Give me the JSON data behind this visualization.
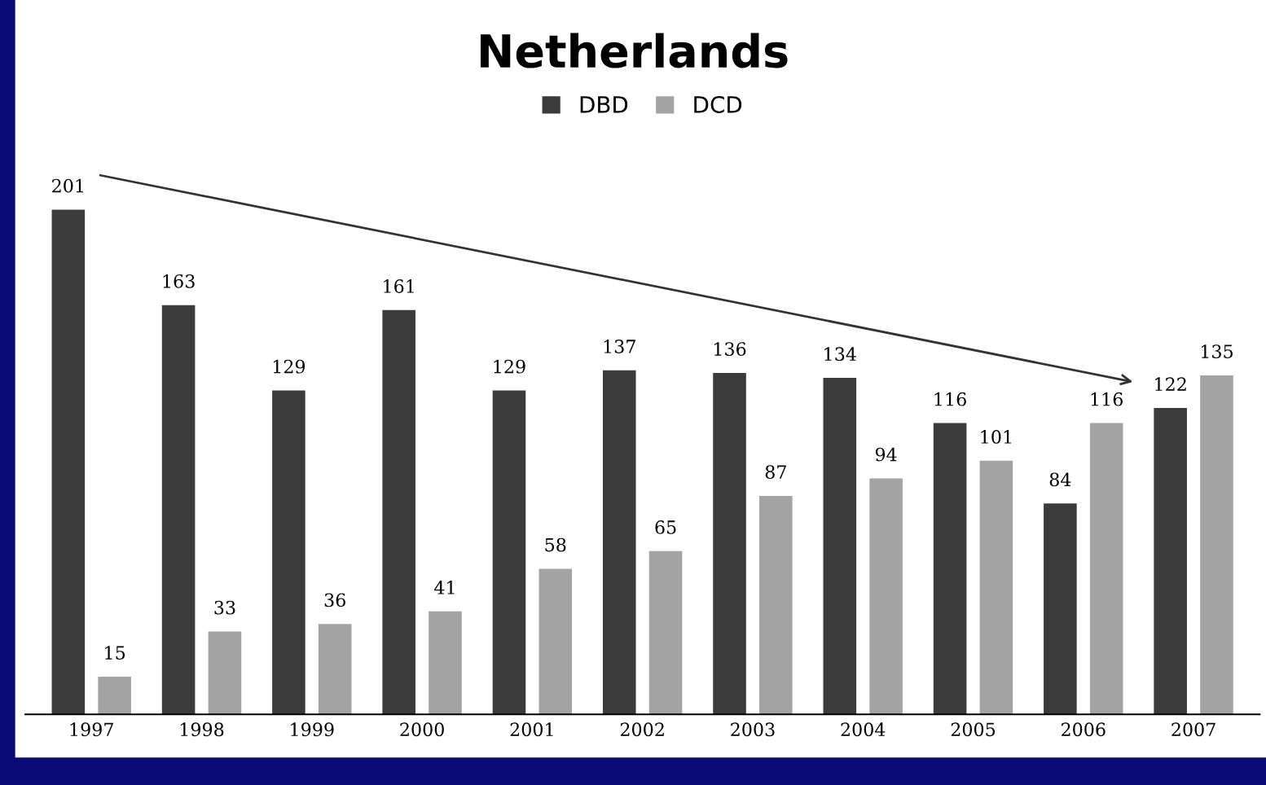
{
  "chart_data": {
    "type": "bar",
    "title": "Netherlands",
    "categories": [
      "1997",
      "1998",
      "1999",
      "2000",
      "2001",
      "2002",
      "2003",
      "2004",
      "2005",
      "2006",
      "2007"
    ],
    "series": [
      {
        "name": "DBD",
        "color": "#3b3b3b",
        "values": [
          201,
          163,
          129,
          161,
          129,
          137,
          136,
          134,
          116,
          84,
          122
        ]
      },
      {
        "name": "DCD",
        "color": "#a3a3a3",
        "values": [
          15,
          33,
          36,
          41,
          58,
          65,
          87,
          94,
          101,
          116,
          135
        ]
      }
    ],
    "data_labels": true,
    "legend": "top",
    "grid": false
  }
}
